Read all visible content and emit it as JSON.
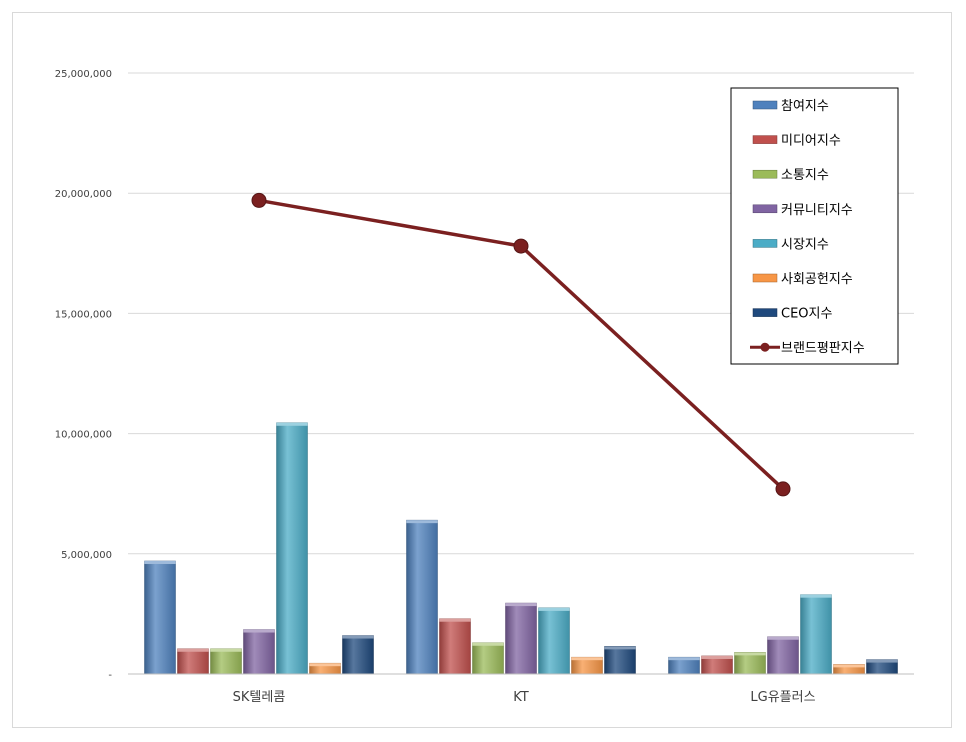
{
  "chart_data": {
    "type": "bar",
    "categories": [
      "SK텔레콤",
      "KT",
      "LG유플러스"
    ],
    "ylim": [
      0,
      25000000
    ],
    "yticks": [
      0,
      5000000,
      10000000,
      15000000,
      20000000,
      25000000
    ],
    "ytick_labels": [
      "-",
      "5,000,000",
      "10,000,000",
      "15,000,000",
      "20,000,000",
      "25,000,000"
    ],
    "grid": true,
    "legend_position": "top-right",
    "series": [
      {
        "name": "참여지수",
        "type": "bar",
        "color": "#4f81bd",
        "values": [
          4700000,
          6400000,
          700000
        ]
      },
      {
        "name": "미디어지수",
        "type": "bar",
        "color": "#c0504d",
        "values": [
          1050000,
          2300000,
          750000
        ]
      },
      {
        "name": "소통지수",
        "type": "bar",
        "color": "#9bbb59",
        "values": [
          1050000,
          1300000,
          900000
        ]
      },
      {
        "name": "커뮤니티지수",
        "type": "bar",
        "color": "#8064a2",
        "values": [
          1850000,
          2950000,
          1550000
        ]
      },
      {
        "name": "시장지수",
        "type": "bar",
        "color": "#4bacc6",
        "values": [
          10450000,
          2750000,
          3300000
        ]
      },
      {
        "name": "사회공헌지수",
        "type": "bar",
        "color": "#f79646",
        "values": [
          450000,
          700000,
          400000
        ]
      },
      {
        "name": "CEO지수",
        "type": "bar",
        "color": "#1f497d",
        "values": [
          1600000,
          1150000,
          600000
        ]
      },
      {
        "name": "브랜드평판지수",
        "type": "line",
        "color": "#7b2020",
        "values": [
          19700000,
          17800000,
          7700000
        ]
      }
    ]
  }
}
